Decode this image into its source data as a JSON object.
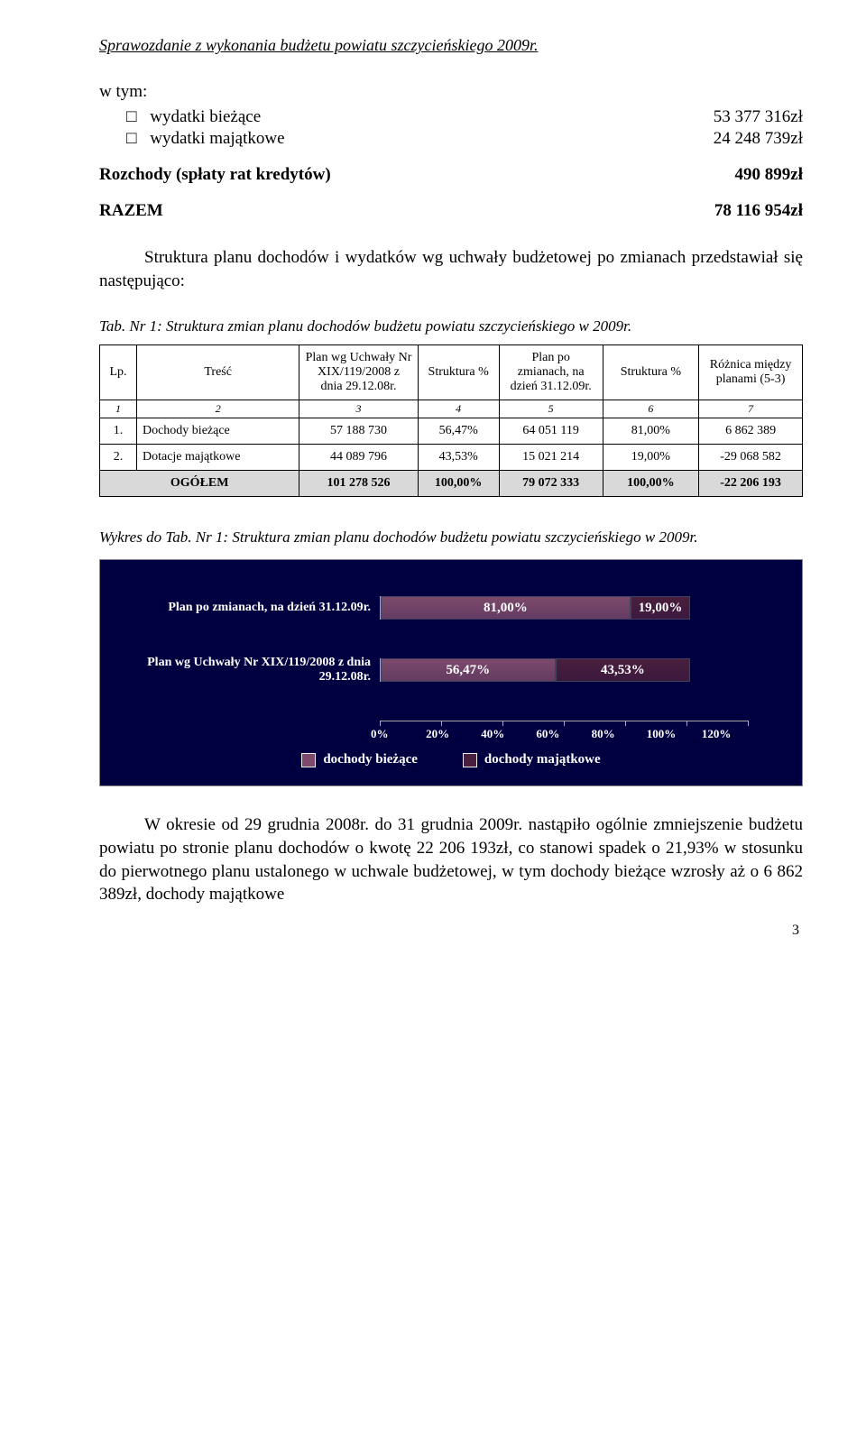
{
  "doc_title": "Sprawozdanie z wykonania budżetu powiatu szczycieńskiego 2009r.",
  "section_label": "w tym:",
  "bullets": [
    {
      "label": "wydatki bieżące",
      "value": "53 377 316zł"
    },
    {
      "label": "wydatki majątkowe",
      "value": "24 248 739zł"
    }
  ],
  "kv1": {
    "label": "Rozchody (spłaty rat kredytów)",
    "value": "490 899zł"
  },
  "kv2": {
    "label": "RAZEM",
    "value": "78 116 954zł"
  },
  "intro_para": "Struktura planu dochodów i wydatków wg uchwały budżetowej po zmianach przedstawiał się następująco:",
  "table_caption": "Tab. Nr 1:  Struktura zmian planu dochodów budżetu powiatu szczycieńskiego w 2009r.",
  "table": {
    "headers": [
      "Lp.",
      "Treść",
      "Plan wg Uchwały Nr XIX/119/2008 z dnia 29.12.08r.",
      "Struktura %",
      "Plan po zmianach, na dzień 31.12.09r.",
      "Struktura %",
      "Różnica między planami (5-3)"
    ],
    "idxrow": [
      "1",
      "2",
      "3",
      "4",
      "5",
      "6",
      "7"
    ],
    "rows": [
      [
        "1.",
        "Dochody bieżące",
        "57 188 730",
        "56,47%",
        "64 051 119",
        "81,00%",
        "6 862 389"
      ],
      [
        "2.",
        "Dotacje majątkowe",
        "44 089 796",
        "43,53%",
        "15 021 214",
        "19,00%",
        "-29 068 582"
      ]
    ],
    "total": [
      "",
      "OGÓŁEM",
      "101 278 526",
      "100,00%",
      "79 072 333",
      "100,00%",
      "-22 206 193"
    ]
  },
  "chart_caption": "Wykres do Tab. Nr 1: Struktura zmian planu dochodów budżetu powiatu szczycieńskiego w  2009r.",
  "chart": {
    "background": "#000040",
    "xmax": 120,
    "axis_ticks": [
      "0%",
      "20%",
      "40%",
      "60%",
      "80%",
      "100%",
      "120%"
    ],
    "bars": [
      {
        "label": "Plan po zmianach, na dzień 31.12.09r.",
        "segments": [
          {
            "pct": 81.0,
            "text": "81,00%",
            "color": "#7c4a6b"
          },
          {
            "pct": 19.0,
            "text": "19,00%",
            "color": "#4a1f3d"
          }
        ]
      },
      {
        "label": "Plan wg Uchwały Nr XIX/119/2008 z dnia 29.12.08r.",
        "segments": [
          {
            "pct": 56.47,
            "text": "56,47%",
            "color": "#7c4a6b"
          },
          {
            "pct": 43.53,
            "text": "43,53%",
            "color": "#4a1f3d"
          }
        ]
      }
    ],
    "legend": [
      {
        "label": "dochody bieżące",
        "color": "#7c4a6b"
      },
      {
        "label": "dochody majątkowe",
        "color": "#4a1f3d"
      }
    ]
  },
  "closing_para": "W okresie od 29 grudnia 2008r. do 31 grudnia 2009r. nastąpiło ogólnie zmniejszenie budżetu powiatu po stronie planu dochodów o kwotę 22 206 193zł, co stanowi spadek o 21,93% w stosunku do pierwotnego planu ustalonego w uchwale budżetowej, w tym dochody bieżące wzrosły aż o  6 862 389zł, dochody majątkowe",
  "page_number": "3"
}
